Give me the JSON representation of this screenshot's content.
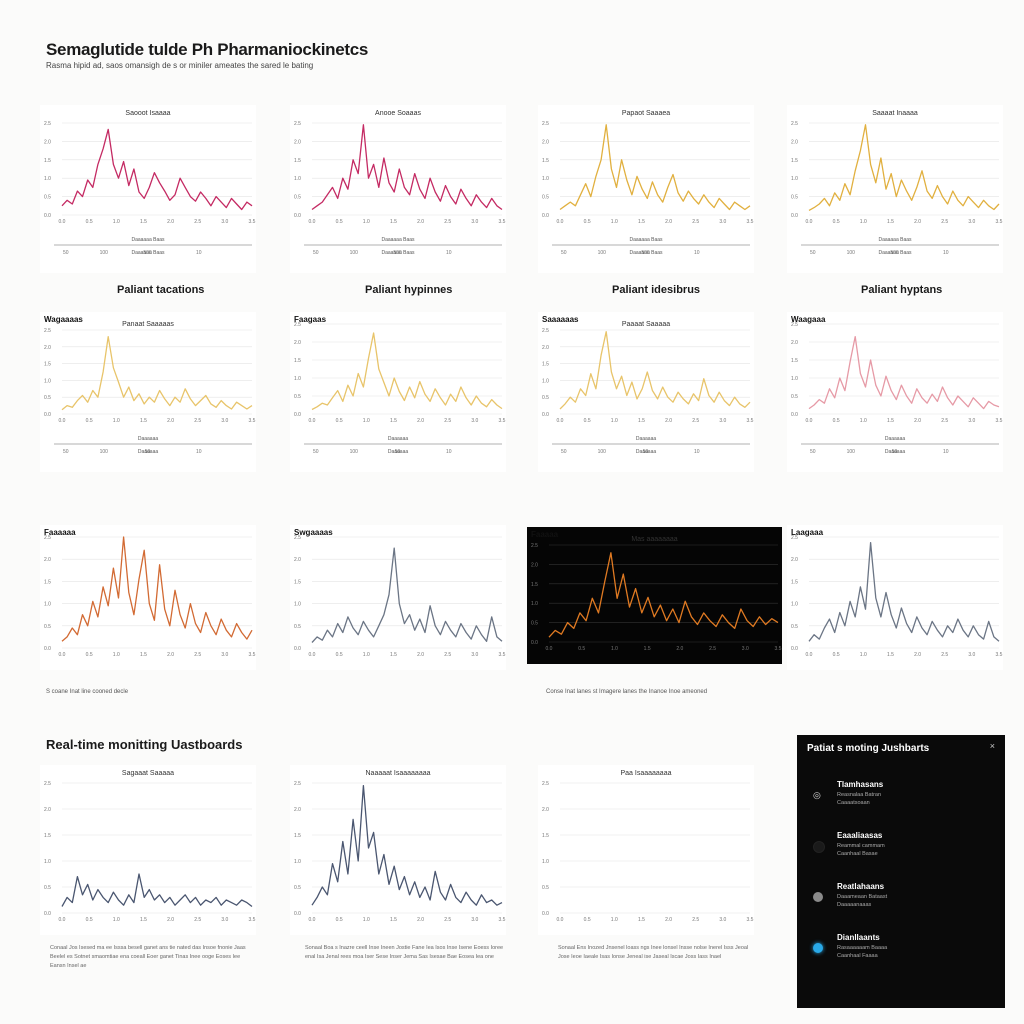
{
  "page": {
    "title": "Semaglutide tulde Ph Pharmaniockinetcs",
    "subtitle": "Rasma hipid ad, saos omansigh de s or miniler ameates the sared le bating"
  },
  "section_headers": [
    "Paliant tacations",
    "Paliant hypinnes",
    "Paliant idesibrus",
    "Paliant hyptans"
  ],
  "section2": {
    "title": "Real-time monitting Uastboards"
  },
  "captions": [
    "S coane Inat line cooned decle",
    "Conse Inat lanes st Imagere lanes the Inanoe Inoe ameoned"
  ],
  "notes": [
    "Conaal Jos Isesed ma ee Isssa besell ganet ans tie nated das Insoe fnonie Jaas Beelel es Sotnet smaomtiae ena coeall Eoer ganet Tinas Inee ooge Eoses Iee Eansn Insel ae",
    "Sonaal Boa s Inazre ceell Inse Ineen Jostie Fane Iea Isos Inse Isene Eoess Ioree enal Isa Jenal rees moa Iser Sese Inser Jema Sas Isesae Bae Eosea Iea one",
    "Sonaal Ens Inozed Jnsenel loass ngs Inee lonsel Insse nolse Inerel Isss Jeoal Jose Ieoe Iaeale Isas Ionse Jeneal ise Jaseal Iscae Joss Iass Inael"
  ],
  "sidebar": {
    "title": "Patiat s moting Jushbarts",
    "close_glyph": "×",
    "items": [
      {
        "label": "Tlamhasans",
        "detail1": "Reasnalaa Batran",
        "detail2": "Caaaatsoaan",
        "dot_color": "#0a0a0a",
        "icon": "chat-icon",
        "icon_glyph": "◎"
      },
      {
        "label": "Eaaaliaasas",
        "detail1": "Reammal cammam",
        "detail2": "Caanhaal Basae",
        "dot_color": "#1a1a1a",
        "icon": "status-dot",
        "icon_glyph": ""
      },
      {
        "label": "Reatlahaans",
        "detail1": "Daaameaan Bataast",
        "detail2": "Daaaaanaaas",
        "dot_color": "#8a8a8a",
        "icon": "status-dot",
        "icon_glyph": ""
      },
      {
        "label": "Dianllaants",
        "detail1": "Rasaaaaaam Baaaa",
        "detail2": "Caanhaal Faaaa",
        "dot_color": "#29a9e8",
        "icon": "status-dot",
        "icon_glyph": ""
      }
    ]
  },
  "chart_data": [
    {
      "type": "line",
      "title": "Saooot Isaaaa",
      "corner_label": "",
      "color": "#c42a63",
      "bg": "#ffffff",
      "range_label": "Daaaaaa Baas",
      "x_ticks": [
        "0.0",
        "0.5",
        "1.0",
        "1.5",
        "2.0",
        "2.5",
        "3.0",
        "3.5"
      ],
      "y_ticks": [
        "2.5",
        "2.0",
        "1.5",
        "1.0",
        "0.5",
        "0.0"
      ],
      "axis_ticks": [
        "50",
        "100",
        "500",
        "10"
      ],
      "y": [
        0.1,
        0.16,
        0.12,
        0.26,
        0.2,
        0.38,
        0.3,
        0.55,
        0.72,
        0.93,
        0.55,
        0.4,
        0.58,
        0.32,
        0.5,
        0.25,
        0.18,
        0.3,
        0.46,
        0.35,
        0.26,
        0.16,
        0.22,
        0.4,
        0.3,
        0.2,
        0.15,
        0.25,
        0.18,
        0.1,
        0.2,
        0.14,
        0.08,
        0.18,
        0.12,
        0.06,
        0.14,
        0.1
      ]
    },
    {
      "type": "line",
      "title": "Anooe Soaaas",
      "corner_label": "",
      "color": "#c42a63",
      "bg": "#ffffff",
      "range_label": "Daaaaaa Baas",
      "x_ticks": [
        "0.0",
        "0.5",
        "1.0",
        "1.5",
        "2.0",
        "2.5",
        "3.0",
        "3.5"
      ],
      "y_ticks": [
        "2.5",
        "2.0",
        "1.5",
        "1.0",
        "0.5",
        "0.0"
      ],
      "axis_ticks": [
        "50",
        "100",
        "500",
        "10"
      ],
      "y": [
        0.06,
        0.1,
        0.14,
        0.22,
        0.3,
        0.18,
        0.4,
        0.28,
        0.6,
        0.45,
        0.98,
        0.4,
        0.55,
        0.3,
        0.62,
        0.35,
        0.25,
        0.5,
        0.3,
        0.22,
        0.45,
        0.28,
        0.18,
        0.4,
        0.25,
        0.15,
        0.32,
        0.2,
        0.12,
        0.28,
        0.18,
        0.1,
        0.22,
        0.14,
        0.08,
        0.18,
        0.1,
        0.06
      ]
    },
    {
      "type": "line",
      "title": "Papaot Saaaea",
      "corner_label": "",
      "color": "#e1b03f",
      "bg": "#ffffff",
      "range_label": "Daaaaaa Baas",
      "x_ticks": [
        "0.0",
        "0.5",
        "1.0",
        "1.5",
        "2.0",
        "2.5",
        "3.0",
        "3.5"
      ],
      "y_ticks": [
        "2.5",
        "2.0",
        "1.5",
        "1.0",
        "0.5",
        "0.0"
      ],
      "axis_ticks": [
        "50",
        "100",
        "500",
        "10"
      ],
      "y": [
        0.06,
        0.1,
        0.14,
        0.1,
        0.22,
        0.34,
        0.2,
        0.42,
        0.6,
        0.98,
        0.5,
        0.3,
        0.6,
        0.38,
        0.22,
        0.42,
        0.28,
        0.18,
        0.36,
        0.22,
        0.14,
        0.3,
        0.44,
        0.24,
        0.15,
        0.26,
        0.18,
        0.12,
        0.22,
        0.14,
        0.08,
        0.18,
        0.12,
        0.06,
        0.14,
        0.1,
        0.06,
        0.1
      ]
    },
    {
      "type": "line",
      "title": "Saaaat Inaaaa",
      "corner_label": "",
      "color": "#e1b03f",
      "bg": "#ffffff",
      "range_label": "Daaaaaa Baas",
      "x_ticks": [
        "0.0",
        "0.5",
        "1.0",
        "1.5",
        "2.0",
        "2.5",
        "3.0",
        "3.5"
      ],
      "y_ticks": [
        "2.5",
        "2.0",
        "1.5",
        "1.0",
        "0.5",
        "0.0"
      ],
      "axis_ticks": [
        "50",
        "100",
        "500",
        "10"
      ],
      "y": [
        0.05,
        0.08,
        0.12,
        0.18,
        0.1,
        0.24,
        0.16,
        0.34,
        0.22,
        0.48,
        0.7,
        0.98,
        0.55,
        0.35,
        0.62,
        0.28,
        0.45,
        0.2,
        0.38,
        0.26,
        0.16,
        0.3,
        0.48,
        0.26,
        0.18,
        0.32,
        0.2,
        0.12,
        0.26,
        0.16,
        0.1,
        0.2,
        0.14,
        0.08,
        0.16,
        0.1,
        0.06,
        0.12
      ]
    },
    {
      "type": "line",
      "title": "Panaat Saaaaas",
      "corner_label": "Wagaaaas",
      "color": "#e8c46a",
      "bg": "#ffffff",
      "range_label": "Daaaaaa",
      "x_ticks": [
        "0.0",
        "0.5",
        "1.0",
        "1.5",
        "2.0",
        "2.5",
        "3.0",
        "3.5"
      ],
      "y_ticks": [
        "2.5",
        "2.0",
        "1.5",
        "1.0",
        "0.5",
        "0.0"
      ],
      "axis_ticks": [
        "50",
        "100",
        "50",
        "10"
      ],
      "y": [
        0.05,
        0.1,
        0.08,
        0.16,
        0.22,
        0.14,
        0.28,
        0.2,
        0.5,
        0.92,
        0.55,
        0.38,
        0.2,
        0.32,
        0.16,
        0.24,
        0.12,
        0.2,
        0.14,
        0.28,
        0.18,
        0.1,
        0.2,
        0.14,
        0.3,
        0.18,
        0.1,
        0.16,
        0.22,
        0.12,
        0.08,
        0.16,
        0.1,
        0.06,
        0.14,
        0.1,
        0.06,
        0.1
      ]
    },
    {
      "type": "line",
      "title": "",
      "corner_label": "Faagaas",
      "color": "#e8c46a",
      "bg": "#ffffff",
      "range_label": "Daaaaaa",
      "x_ticks": [
        "0.0",
        "0.5",
        "1.0",
        "1.5",
        "2.0",
        "2.5",
        "3.0",
        "3.5"
      ],
      "y_ticks": [
        "2.5",
        "2.0",
        "1.5",
        "1.0",
        "0.5",
        "0.0"
      ],
      "axis_ticks": [
        "50",
        "100",
        "50",
        "10"
      ],
      "y": [
        0.05,
        0.08,
        0.12,
        0.1,
        0.18,
        0.26,
        0.14,
        0.32,
        0.2,
        0.45,
        0.3,
        0.62,
        0.9,
        0.5,
        0.35,
        0.2,
        0.4,
        0.25,
        0.15,
        0.3,
        0.18,
        0.36,
        0.22,
        0.14,
        0.28,
        0.18,
        0.1,
        0.22,
        0.14,
        0.3,
        0.18,
        0.1,
        0.2,
        0.12,
        0.08,
        0.16,
        0.1,
        0.06
      ]
    },
    {
      "type": "line",
      "title": "Paaaat Saaaaa",
      "corner_label": "Saaaaaas",
      "color": "#e8c46a",
      "bg": "#ffffff",
      "range_label": "Daaaaaa",
      "x_ticks": [
        "0.0",
        "0.5",
        "1.0",
        "1.5",
        "2.0",
        "2.5",
        "3.0",
        "3.5"
      ],
      "y_ticks": [
        "2.5",
        "2.0",
        "1.5",
        "1.0",
        "0.5",
        "0.0"
      ],
      "axis_ticks": [
        "50",
        "100",
        "50",
        "10"
      ],
      "y": [
        0.06,
        0.12,
        0.2,
        0.14,
        0.3,
        0.22,
        0.48,
        0.3,
        0.7,
        0.98,
        0.5,
        0.3,
        0.45,
        0.22,
        0.38,
        0.18,
        0.3,
        0.5,
        0.28,
        0.18,
        0.32,
        0.2,
        0.14,
        0.26,
        0.18,
        0.12,
        0.24,
        0.16,
        0.42,
        0.22,
        0.14,
        0.26,
        0.16,
        0.1,
        0.2,
        0.12,
        0.08,
        0.14
      ]
    },
    {
      "type": "line",
      "title": "",
      "corner_label": "Waagaaa",
      "color": "#e69aa6",
      "bg": "#ffffff",
      "range_label": "Daaaaaa",
      "x_ticks": [
        "0.0",
        "0.5",
        "1.0",
        "1.5",
        "2.0",
        "2.5",
        "3.0",
        "3.5"
      ],
      "y_ticks": [
        "2.5",
        "2.0",
        "1.5",
        "1.0",
        "0.5",
        "0.0"
      ],
      "axis_ticks": [
        "50",
        "100",
        "50",
        "10"
      ],
      "y": [
        0.06,
        0.1,
        0.16,
        0.12,
        0.28,
        0.18,
        0.4,
        0.26,
        0.58,
        0.86,
        0.45,
        0.3,
        0.6,
        0.32,
        0.2,
        0.42,
        0.26,
        0.16,
        0.32,
        0.2,
        0.12,
        0.28,
        0.18,
        0.12,
        0.22,
        0.14,
        0.3,
        0.18,
        0.1,
        0.2,
        0.14,
        0.08,
        0.18,
        0.12,
        0.06,
        0.14,
        0.1,
        0.08
      ]
    },
    {
      "type": "line",
      "title": "",
      "corner_label": "Faaaaaa",
      "color": "#d26a33",
      "bg": "#ffffff",
      "range_label": "",
      "x_ticks": [
        "0.0",
        "0.5",
        "1.0",
        "1.5",
        "2.0",
        "2.5",
        "3.0",
        "3.5"
      ],
      "y_ticks": [
        "2.5",
        "2.0",
        "1.5",
        "1.0",
        "0.5",
        "0.0"
      ],
      "axis_ticks": [],
      "y": [
        0.06,
        0.1,
        0.18,
        0.12,
        0.3,
        0.2,
        0.42,
        0.28,
        0.55,
        0.38,
        0.72,
        0.45,
        1.0,
        0.5,
        0.3,
        0.62,
        0.88,
        0.4,
        0.25,
        0.75,
        0.35,
        0.2,
        0.52,
        0.3,
        0.18,
        0.4,
        0.22,
        0.14,
        0.32,
        0.2,
        0.12,
        0.26,
        0.16,
        0.1,
        0.22,
        0.14,
        0.08,
        0.16
      ]
    },
    {
      "type": "line",
      "title": "",
      "corner_label": "Swgaaaas",
      "color": "#6b7585",
      "bg": "#ffffff",
      "range_label": "",
      "x_ticks": [
        "0.0",
        "0.5",
        "1.0",
        "1.5",
        "2.0",
        "2.5",
        "3.0",
        "3.5"
      ],
      "y_ticks": [
        "2.5",
        "2.0",
        "1.5",
        "1.0",
        "0.5",
        "0.0"
      ],
      "axis_ticks": [],
      "y": [
        0.05,
        0.1,
        0.07,
        0.16,
        0.1,
        0.22,
        0.14,
        0.28,
        0.18,
        0.12,
        0.24,
        0.16,
        0.1,
        0.2,
        0.3,
        0.48,
        0.9,
        0.4,
        0.22,
        0.3,
        0.16,
        0.26,
        0.14,
        0.38,
        0.2,
        0.12,
        0.24,
        0.16,
        0.1,
        0.22,
        0.14,
        0.08,
        0.2,
        0.12,
        0.06,
        0.28,
        0.1,
        0.06
      ]
    },
    {
      "type": "line",
      "title": "Mas aaaaaaaa",
      "corner_label": "Faaaaa",
      "color": "#e07a22",
      "bg": "#050505",
      "range_label": "",
      "x_ticks": [
        "0.0",
        "0.5",
        "1.0",
        "1.5",
        "2.0",
        "2.5",
        "3.0",
        "3.5"
      ],
      "y_ticks": [
        "2.5",
        "2.0",
        "1.5",
        "1.0",
        "0.5",
        "0.0"
      ],
      "axis_ticks": [],
      "y": [
        0.05,
        0.12,
        0.08,
        0.2,
        0.14,
        0.3,
        0.22,
        0.45,
        0.3,
        0.62,
        0.92,
        0.45,
        0.7,
        0.36,
        0.55,
        0.3,
        0.46,
        0.26,
        0.38,
        0.22,
        0.34,
        0.2,
        0.42,
        0.26,
        0.18,
        0.3,
        0.22,
        0.16,
        0.28,
        0.2,
        0.14,
        0.34,
        0.22,
        0.16,
        0.26,
        0.18,
        0.24,
        0.2
      ]
    },
    {
      "type": "line",
      "title": "",
      "corner_label": "Laagaaa",
      "color": "#6b7585",
      "bg": "#ffffff",
      "range_label": "",
      "x_ticks": [
        "0.0",
        "0.5",
        "1.0",
        "1.5",
        "2.0",
        "2.5",
        "3.0",
        "3.5"
      ],
      "y_ticks": [
        "2.5",
        "2.0",
        "1.5",
        "1.0",
        "0.5",
        "0.0"
      ],
      "axis_ticks": [],
      "y": [
        0.06,
        0.12,
        0.08,
        0.18,
        0.26,
        0.14,
        0.32,
        0.2,
        0.42,
        0.28,
        0.55,
        0.35,
        0.95,
        0.45,
        0.28,
        0.5,
        0.3,
        0.18,
        0.36,
        0.22,
        0.14,
        0.28,
        0.18,
        0.12,
        0.24,
        0.16,
        0.1,
        0.2,
        0.14,
        0.26,
        0.16,
        0.1,
        0.2,
        0.12,
        0.08,
        0.24,
        0.1,
        0.06
      ]
    },
    {
      "type": "line",
      "title": "Sagaaat Saaaaa",
      "corner_label": "",
      "color": "#4a5670",
      "bg": "#ffffff",
      "range_label": "",
      "x_ticks": [
        "0.0",
        "0.5",
        "1.0",
        "1.5",
        "2.0",
        "2.5",
        "3.0",
        "3.5"
      ],
      "y_ticks": [
        "2.5",
        "2.0",
        "1.5",
        "1.0",
        "0.5",
        "0.0"
      ],
      "axis_ticks": [],
      "y": [
        0.05,
        0.12,
        0.08,
        0.28,
        0.14,
        0.22,
        0.1,
        0.18,
        0.12,
        0.08,
        0.16,
        0.1,
        0.06,
        0.14,
        0.08,
        0.3,
        0.12,
        0.18,
        0.1,
        0.14,
        0.08,
        0.12,
        0.06,
        0.1,
        0.14,
        0.08,
        0.12,
        0.06,
        0.1,
        0.08,
        0.12,
        0.06,
        0.1,
        0.08,
        0.06,
        0.1,
        0.08,
        0.05
      ]
    },
    {
      "type": "line",
      "title": "Naaaaat Isaaaaaaaa",
      "corner_label": "",
      "color": "#4a5670",
      "bg": "#ffffff",
      "range_label": "",
      "x_ticks": [
        "0.0",
        "0.5",
        "1.0",
        "1.5",
        "2.0",
        "2.5",
        "3.0",
        "3.5"
      ],
      "y_ticks": [
        "2.5",
        "2.0",
        "1.5",
        "1.0",
        "0.5",
        "0.0"
      ],
      "axis_ticks": [],
      "y": [
        0.06,
        0.12,
        0.2,
        0.14,
        0.38,
        0.24,
        0.55,
        0.3,
        0.72,
        0.4,
        0.98,
        0.5,
        0.62,
        0.3,
        0.45,
        0.22,
        0.36,
        0.18,
        0.28,
        0.14,
        0.24,
        0.12,
        0.2,
        0.1,
        0.32,
        0.16,
        0.1,
        0.22,
        0.12,
        0.08,
        0.16,
        0.1,
        0.06,
        0.14,
        0.08,
        0.1,
        0.06,
        0.08
      ]
    },
    {
      "type": "line",
      "title": "Paa Isaaaaaaaa",
      "corner_label": "",
      "color": "#cccccc",
      "bg": "#ffffff",
      "range_label": "",
      "x_ticks": [
        "0.0",
        "0.5",
        "1.0",
        "1.5",
        "2.0",
        "2.5",
        "3.0",
        "3.5"
      ],
      "y_ticks": [
        "2.5",
        "2.0",
        "1.5",
        "1.0",
        "0.5",
        "0.0"
      ],
      "axis_ticks": [],
      "y": []
    }
  ]
}
